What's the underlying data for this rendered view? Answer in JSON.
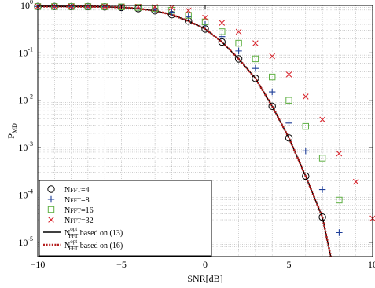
{
  "chart_data": {
    "type": "line",
    "xlabel": "SNR[dB]",
    "ylabel": "P",
    "ylabel_sub": "MD",
    "xlim": [
      -10,
      10
    ],
    "ylim": [
      5e-06,
      1
    ],
    "yscale": "log",
    "grid": true,
    "legend_position": "bottom-left",
    "xticks": [
      -10,
      -5,
      0,
      5,
      10
    ],
    "xtick_labels": [
      "−10",
      "−5",
      "0",
      "5",
      "10"
    ],
    "yticks": [
      {
        "value": 1,
        "base": "10",
        "exp": "0"
      },
      {
        "value": 0.1,
        "base": "10",
        "exp": "-1"
      },
      {
        "value": 0.01,
        "base": "10",
        "exp": "-2"
      },
      {
        "value": 0.001,
        "base": "10",
        "exp": "-3"
      },
      {
        "value": 0.0001,
        "base": "10",
        "exp": "-4"
      },
      {
        "value": 1e-05,
        "base": "10",
        "exp": "-5"
      }
    ],
    "series": [
      {
        "name": "N",
        "name_sc": "FFT",
        "name_tail": "=4",
        "marker": "circle",
        "color": "#000000",
        "x": [
          -10,
          -9,
          -8,
          -7,
          -6,
          -5,
          -4,
          -3,
          -2,
          -1,
          0,
          1,
          2,
          3,
          4,
          5,
          6,
          7
        ],
        "y": [
          0.95,
          0.95,
          0.948,
          0.945,
          0.935,
          0.91,
          0.86,
          0.77,
          0.64,
          0.47,
          0.32,
          0.17,
          0.075,
          0.029,
          0.0075,
          0.0016,
          0.00025,
          3.4e-05
        ]
      },
      {
        "name": "N",
        "name_sc": "FFT",
        "name_tail": "=8",
        "marker": "plus",
        "color": "#1f3f99",
        "x": [
          -10,
          -9,
          -8,
          -7,
          -6,
          -5,
          -4,
          -3,
          -2,
          -1,
          0,
          1,
          2,
          3,
          4,
          5,
          6,
          7,
          8
        ],
        "y": [
          0.95,
          0.95,
          0.948,
          0.946,
          0.94,
          0.92,
          0.89,
          0.82,
          0.72,
          0.58,
          0.4,
          0.22,
          0.11,
          0.047,
          0.015,
          0.0033,
          0.00085,
          0.00013,
          1.6e-05
        ]
      },
      {
        "name": "N",
        "name_sc": "FFT",
        "name_tail": "=16",
        "marker": "square",
        "color": "#5fb043",
        "x": [
          -10,
          -9,
          -8,
          -7,
          -6,
          -5,
          -4,
          -3,
          -2,
          -1,
          0,
          1,
          2,
          3,
          4,
          5,
          6,
          7,
          8
        ],
        "y": [
          0.95,
          0.95,
          0.95,
          0.948,
          0.945,
          0.935,
          0.91,
          0.86,
          0.79,
          0.62,
          0.45,
          0.28,
          0.16,
          0.075,
          0.031,
          0.01,
          0.0028,
          0.0006,
          7.8e-05
        ]
      },
      {
        "name": "N",
        "name_sc": "FFT",
        "name_tail": "=32",
        "marker": "x",
        "color": "#d8262e",
        "x": [
          -10,
          -9,
          -8,
          -7,
          -6,
          -5,
          -4,
          -3,
          -2,
          -1,
          0,
          1,
          2,
          3,
          4,
          5,
          6,
          7,
          8,
          9,
          10
        ],
        "y": [
          0.95,
          0.95,
          0.95,
          0.95,
          0.948,
          0.945,
          0.94,
          0.93,
          0.9,
          0.78,
          0.55,
          0.43,
          0.28,
          0.16,
          0.085,
          0.035,
          0.012,
          0.0039,
          0.00075,
          0.00019,
          3.2e-05
        ]
      },
      {
        "name": "N",
        "sup": "opt",
        "sub": "FFT",
        "name_tail": " based on (13)",
        "marker": "line-solid",
        "color": "#000000",
        "x": [
          -10,
          -9,
          -8,
          -7,
          -6,
          -5,
          -4,
          -3,
          -2,
          -1,
          0,
          1,
          2,
          3,
          4,
          5,
          6,
          7,
          7.5
        ],
        "y": [
          0.95,
          0.95,
          0.948,
          0.945,
          0.935,
          0.91,
          0.86,
          0.77,
          0.64,
          0.47,
          0.32,
          0.17,
          0.075,
          0.029,
          0.0075,
          0.0016,
          0.00025,
          3.4e-05,
          5e-06
        ]
      },
      {
        "name": "N",
        "sup": "opt",
        "sub": "FFT",
        "name_tail": " based on (16)",
        "marker": "line-dotted",
        "color": "#b41e1e",
        "x": [
          -10,
          -9,
          -8,
          -7,
          -6,
          -5,
          -4,
          -3,
          -2,
          -1,
          0,
          1,
          2,
          3,
          4,
          5,
          6,
          7,
          7.5
        ],
        "y": [
          0.95,
          0.95,
          0.948,
          0.945,
          0.935,
          0.91,
          0.86,
          0.77,
          0.64,
          0.47,
          0.32,
          0.17,
          0.075,
          0.029,
          0.0075,
          0.0016,
          0.00025,
          3.4e-05,
          5e-06
        ]
      }
    ]
  }
}
